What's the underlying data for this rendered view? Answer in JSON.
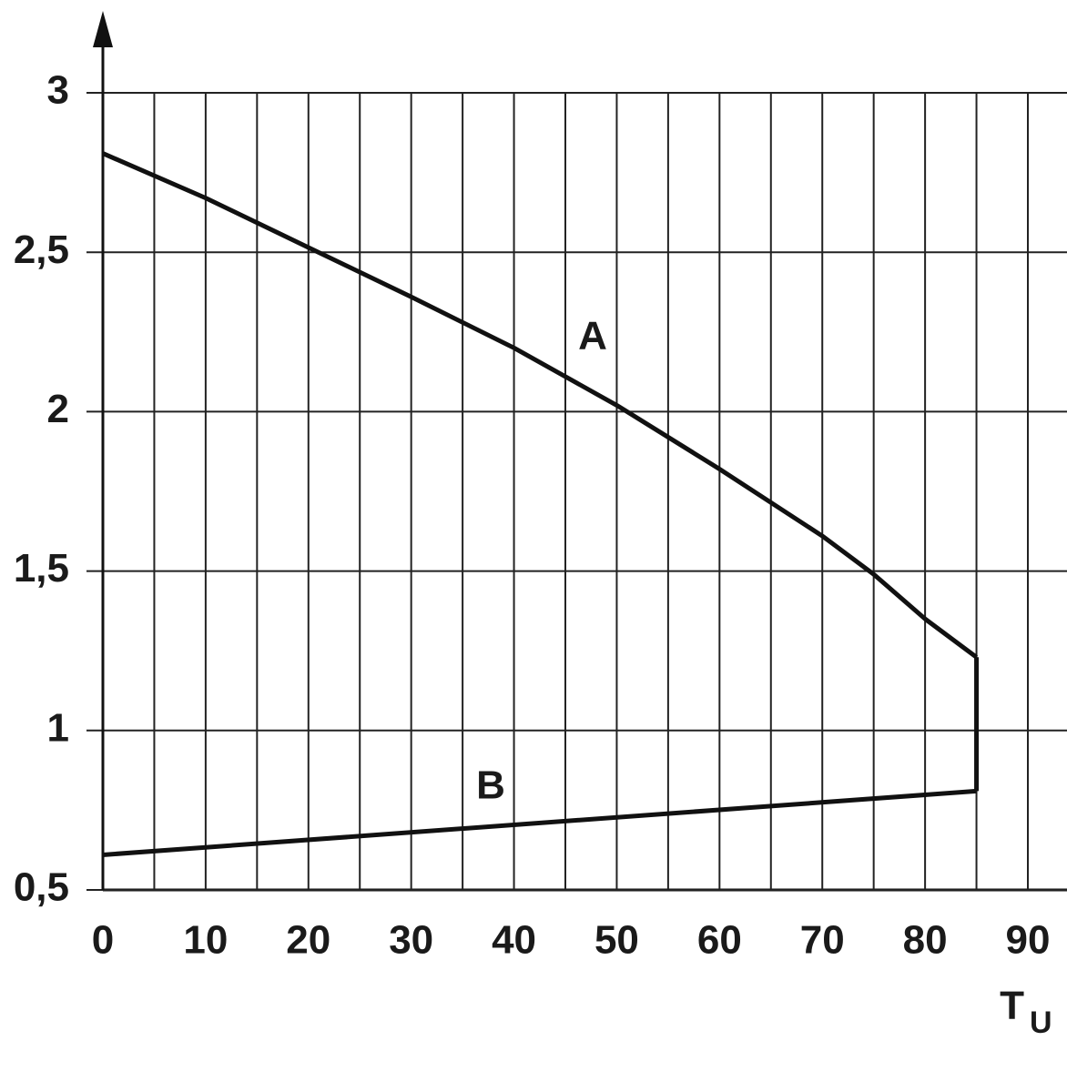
{
  "chart_data": {
    "type": "line",
    "x_label": "T",
    "x_label_subscript": "U",
    "xlim": [
      0,
      90
    ],
    "ylim": [
      0.5,
      3
    ],
    "xticks": [
      0,
      10,
      20,
      30,
      40,
      50,
      60,
      70,
      80,
      90
    ],
    "xminorticks": [
      5,
      15,
      25,
      35,
      45,
      55,
      65,
      75,
      85
    ],
    "yticks": [
      {
        "value": 0.5,
        "label": "0,5"
      },
      1,
      {
        "value": 1.5,
        "label": "1,5"
      },
      2,
      {
        "value": 2.5,
        "label": "2,5"
      },
      3
    ],
    "grid": true,
    "series": [
      {
        "name": "A",
        "color": "#111111",
        "x": [
          0,
          10,
          20,
          30,
          40,
          50,
          60,
          70,
          75,
          80,
          85
        ],
        "values": [
          2.81,
          2.67,
          2.515,
          2.36,
          2.2,
          2.02,
          1.82,
          1.61,
          1.49,
          1.35,
          1.23
        ]
      },
      {
        "name": "B",
        "color": "#111111",
        "x": [
          0,
          85
        ],
        "values": [
          0.61,
          0.81
        ]
      }
    ]
  }
}
